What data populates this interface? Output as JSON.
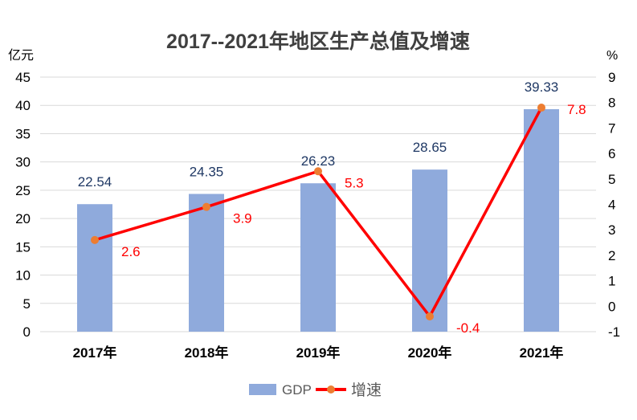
{
  "chart_data": {
    "type": "bar+line",
    "title": "2017--2021年地区生产总值及增速",
    "categories": [
      "2017年",
      "2018年",
      "2019年",
      "2020年",
      "2021年"
    ],
    "y_left": {
      "label": "亿元",
      "range": [
        0,
        45
      ],
      "ticks": [
        0,
        5,
        10,
        15,
        20,
        25,
        30,
        35,
        40,
        45
      ]
    },
    "y_right": {
      "label": "%",
      "range": [
        -1,
        9
      ],
      "ticks": [
        -1,
        0,
        1,
        2,
        3,
        4,
        5,
        6,
        7,
        8,
        9
      ]
    },
    "grid": true,
    "legend_position": "bottom",
    "series": [
      {
        "name": "GDP",
        "type": "bar",
        "axis": "left",
        "color": "#8faadc",
        "label_color": "#1f3864",
        "values": [
          22.54,
          24.35,
          26.23,
          28.65,
          39.33
        ]
      },
      {
        "name": "增速",
        "type": "line",
        "axis": "right",
        "color": "#ff0000",
        "marker_color": "#ed7d31",
        "label_color": "#ff0000",
        "values": [
          2.6,
          3.9,
          5.3,
          -0.4,
          7.8
        ]
      }
    ]
  }
}
